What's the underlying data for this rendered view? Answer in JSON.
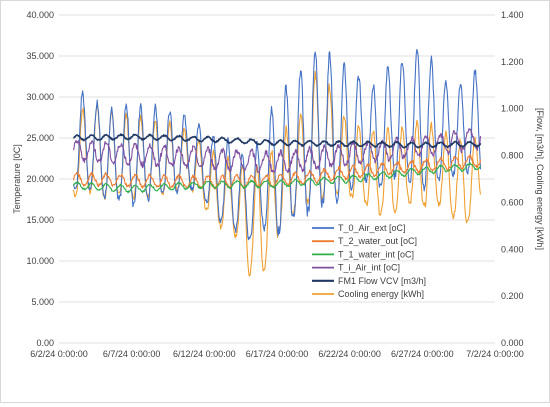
{
  "chart_data": {
    "type": "line",
    "title": "",
    "xlabel": "",
    "ylabel": "Temperature [0C]",
    "y2label": "[Flow, [m3/h], Cooling energy [kWh]",
    "xlim": [
      "6/2/24 0:00:00",
      "7/2/24 0:00:00"
    ],
    "xticks": [
      "6/2/24 0:00:00",
      "6/7/24 0:00:00",
      "6/12/24 0:00:00",
      "6/17/24 0:00:00",
      "6/22/24 0:00:00",
      "6/27/24 0:00:00",
      "7/2/24 0:00:00"
    ],
    "ylim": [
      0,
      40
    ],
    "yticks": [
      "0.00",
      "5.000",
      "10.000",
      "15.000",
      "20.000",
      "25.000",
      "30.000",
      "35.000",
      "40.000"
    ],
    "y2lim": [
      0,
      1.4
    ],
    "y2ticks": [
      "0.000",
      "0.200",
      "0.400",
      "0.600",
      "0.800",
      "1.000",
      "1.200",
      "1.400"
    ],
    "grid": true,
    "legend_position": "lower-right",
    "series": [
      {
        "name": "T_0_Air_ext  [oC]",
        "color": "#4472C4",
        "axis": "left",
        "x": [
          "6/3/24",
          "6/4/24",
          "6/5/24",
          "6/6/24",
          "6/7/24",
          "6/8/24",
          "6/9/24",
          "6/10/24",
          "6/11/24",
          "6/12/24",
          "6/13/24",
          "6/14/24",
          "6/15/24",
          "6/16/24",
          "6/17/24",
          "6/18/24",
          "6/19/24",
          "6/20/24",
          "6/21/24",
          "6/22/24",
          "6/23/24",
          "6/24/24",
          "6/25/24",
          "6/26/24",
          "6/27/24",
          "6/28/24",
          "6/29/24",
          "6/30/24",
          "7/1/24"
        ],
        "min": [
          18.5,
          19.0,
          18.0,
          17.5,
          17.0,
          17.5,
          18.0,
          18.5,
          19.0,
          17.5,
          15.0,
          14.0,
          12.5,
          14.0,
          13.5,
          15.0,
          16.0,
          17.0,
          17.5,
          19.0,
          20.0,
          19.0,
          20.5,
          20.0,
          19.0,
          20.0,
          20.5,
          21.0,
          20.5
        ],
        "max": [
          31.5,
          30.0,
          29.0,
          28.5,
          29.5,
          28.5,
          29.0,
          28.0,
          27.5,
          26.0,
          25.0,
          24.5,
          22.0,
          25.5,
          30.0,
          32.0,
          34.0,
          36.0,
          35.0,
          33.5,
          32.0,
          31.0,
          35.5,
          34.0,
          37.0,
          33.0,
          31.0,
          32.0,
          34.0
        ]
      },
      {
        "name": "T_2_water_out  [oC]",
        "color": "#ED7D31",
        "axis": "left",
        "x": [
          "6/3/24",
          "6/7/24",
          "6/12/24",
          "6/17/24",
          "6/22/24",
          "6/27/24",
          "7/1/24"
        ],
        "values": [
          20.0,
          19.8,
          19.6,
          19.8,
          20.8,
          21.6,
          22.2
        ],
        "band": 0.7
      },
      {
        "name": "T_1_water_int  [oC]",
        "color": "#2CB04A",
        "axis": "left",
        "x": [
          "6/3/24",
          "6/7/24",
          "6/12/24",
          "6/17/24",
          "6/22/24",
          "6/27/24",
          "7/1/24"
        ],
        "values": [
          19.2,
          18.8,
          19.3,
          19.4,
          20.0,
          21.0,
          21.6
        ],
        "band": 0.4
      },
      {
        "name": "T_i_Air_int  [oC]",
        "color": "#7F4FA0",
        "axis": "left",
        "x": [
          "6/3/24",
          "6/7/24",
          "6/12/24",
          "6/17/24",
          "6/22/24",
          "6/27/24",
          "7/1/24"
        ],
        "values": [
          23.5,
          23.0,
          22.5,
          22.0,
          23.0,
          24.0,
          25.0
        ],
        "band": 1.2
      },
      {
        "name": "FM1 Flow VCV [m3/h]",
        "color": "#1F3864",
        "axis": "right",
        "x": [
          "6/3/24",
          "6/7/24",
          "6/12/24",
          "6/17/24",
          "6/22/24",
          "6/27/24",
          "7/1/24"
        ],
        "values": [
          0.875,
          0.88,
          0.87,
          0.855,
          0.85,
          0.845,
          0.85
        ],
        "band": 0.01
      },
      {
        "name": "Cooling energy  [kWh]",
        "color": "#F0A030",
        "axis": "right",
        "x": [
          "6/3/24",
          "6/4/24",
          "6/5/24",
          "6/6/24",
          "6/7/24",
          "6/8/24",
          "6/9/24",
          "6/10/24",
          "6/11/24",
          "6/12/24",
          "6/13/24",
          "6/14/24",
          "6/15/24",
          "6/16/24",
          "6/17/24",
          "6/18/24",
          "6/19/24",
          "6/20/24",
          "6/21/24",
          "6/22/24",
          "6/23/24",
          "6/24/24",
          "6/25/24",
          "6/26/24",
          "6/27/24",
          "6/28/24",
          "6/29/24",
          "6/30/24",
          "7/1/24"
        ],
        "min": [
          0.63,
          0.65,
          0.62,
          0.63,
          0.62,
          0.63,
          0.64,
          0.65,
          0.66,
          0.58,
          0.5,
          0.48,
          0.3,
          0.3,
          0.45,
          0.55,
          0.6,
          0.62,
          0.64,
          0.63,
          0.6,
          0.55,
          0.56,
          0.6,
          0.58,
          0.6,
          0.55,
          0.5,
          0.62
        ],
        "max": [
          0.92,
          1.05,
          1.0,
          0.98,
          0.97,
          0.96,
          0.95,
          0.93,
          0.9,
          0.85,
          0.8,
          0.78,
          0.75,
          0.78,
          0.85,
          0.95,
          1.0,
          1.24,
          1.0,
          0.95,
          0.92,
          0.9,
          0.92,
          0.93,
          0.95,
          0.92,
          0.88,
          0.86,
          0.88
        ]
      }
    ]
  }
}
